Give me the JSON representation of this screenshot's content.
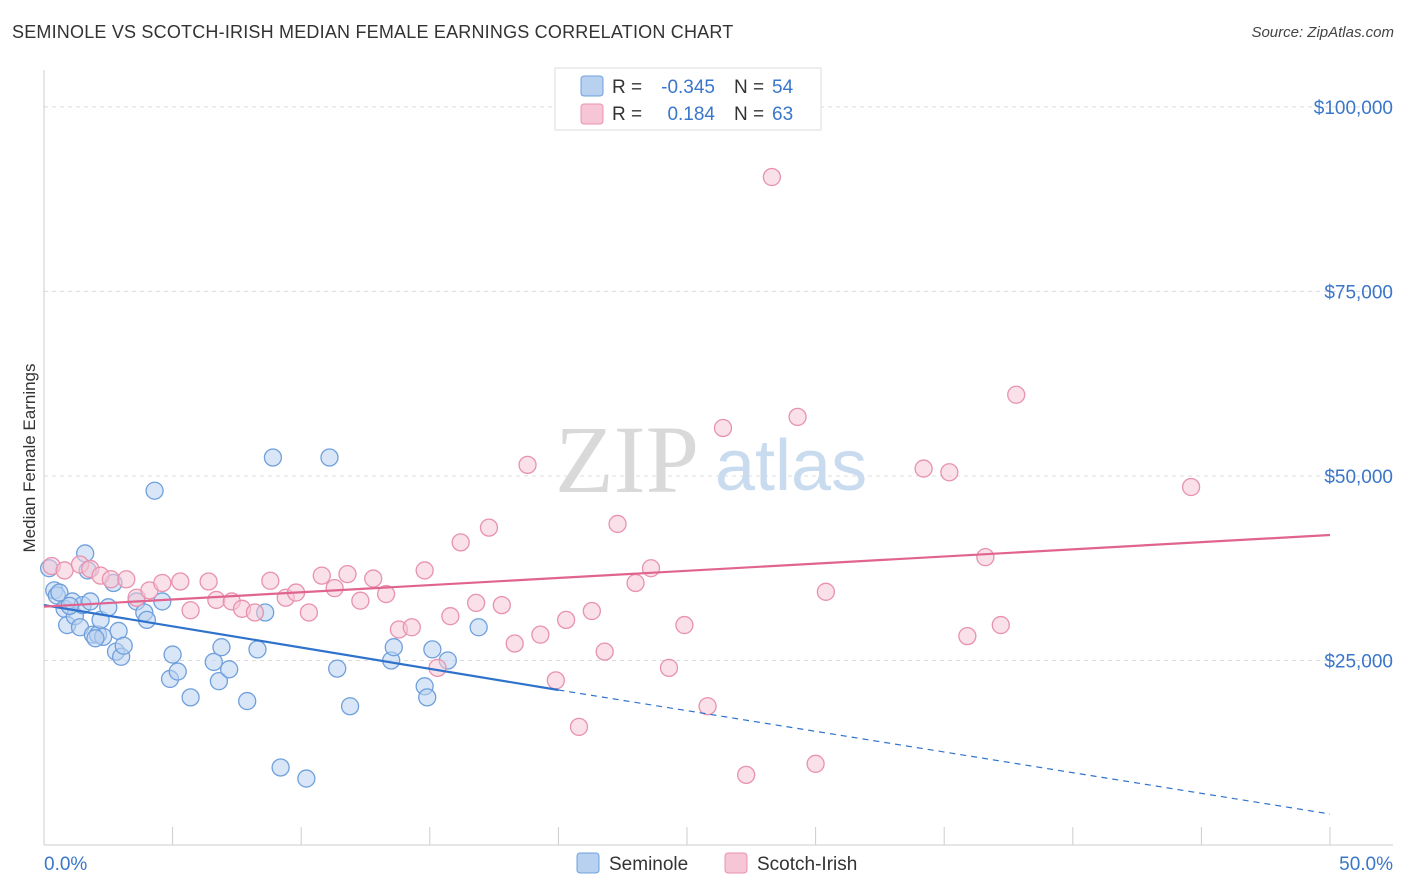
{
  "header": {
    "title": "SEMINOLE VS SCOTCH-IRISH MEDIAN FEMALE EARNINGS CORRELATION CHART",
    "source": "Source: ZipAtlas.com"
  },
  "watermark": {
    "zip": "ZIP",
    "atlas": "atlas"
  },
  "chart_data": {
    "type": "scatter",
    "title": "SEMINOLE VS SCOTCH-IRISH MEDIAN FEMALE EARNINGS CORRELATION CHART",
    "xlabel": "",
    "ylabel": "Median Female Earnings",
    "xlim": [
      0,
      50
    ],
    "ylim": [
      0,
      105000
    ],
    "x_tick_labels": {
      "min": "0.0%",
      "max": "50.0%"
    },
    "y_ticks": [
      {
        "value": 25000,
        "label": "$25,000"
      },
      {
        "value": 50000,
        "label": "$50,000"
      },
      {
        "value": 75000,
        "label": "$75,000"
      },
      {
        "value": 100000,
        "label": "$100,000"
      }
    ],
    "grid": true,
    "legend_position": "top-center",
    "stats": [
      {
        "series": "Seminole",
        "r_label": "R =",
        "r_value": "-0.345",
        "n_label": "N =",
        "n_value": "54"
      },
      {
        "series": "Scotch-Irish",
        "r_label": "R =",
        "r_value": "0.184",
        "n_label": "N =",
        "n_value": "63"
      }
    ],
    "series": [
      {
        "name": "Seminole",
        "color": "#6fa0dc",
        "fill": "#b9d1f1",
        "trend": {
          "x0": 0,
          "y0": 32500,
          "x1": 20,
          "y1": 21000,
          "dash_to_x": 50,
          "dash_to_y": 4200,
          "color": "#2f72cc"
        },
        "points": [
          [
            0.2,
            37500
          ],
          [
            0.4,
            34500
          ],
          [
            0.5,
            33800
          ],
          [
            0.6,
            34200
          ],
          [
            0.8,
            32000
          ],
          [
            0.9,
            29800
          ],
          [
            1.1,
            33000
          ],
          [
            1.2,
            31000
          ],
          [
            1.4,
            29500
          ],
          [
            1.5,
            32500
          ],
          [
            1.6,
            39500
          ],
          [
            1.7,
            37200
          ],
          [
            1.8,
            33000
          ],
          [
            1.9,
            28500
          ],
          [
            2.1,
            28500
          ],
          [
            2.2,
            30500
          ],
          [
            2.3,
            28200
          ],
          [
            2.5,
            32200
          ],
          [
            2.7,
            35500
          ],
          [
            2.8,
            26200
          ],
          [
            2.9,
            29000
          ],
          [
            3.0,
            25500
          ],
          [
            3.1,
            27000
          ],
          [
            3.6,
            33000
          ],
          [
            3.9,
            31500
          ],
          [
            4.0,
            30500
          ],
          [
            4.3,
            48000
          ],
          [
            4.6,
            33000
          ],
          [
            4.9,
            22500
          ],
          [
            5.0,
            25800
          ],
          [
            5.2,
            23500
          ],
          [
            5.7,
            20000
          ],
          [
            6.6,
            24800
          ],
          [
            6.9,
            26800
          ],
          [
            6.8,
            22200
          ],
          [
            7.2,
            23800
          ],
          [
            7.9,
            19500
          ],
          [
            8.3,
            26500
          ],
          [
            8.6,
            31500
          ],
          [
            8.9,
            52500
          ],
          [
            9.2,
            10500
          ],
          [
            10.2,
            9000
          ],
          [
            11.1,
            52500
          ],
          [
            11.4,
            23900
          ],
          [
            11.9,
            18800
          ],
          [
            13.5,
            25000
          ],
          [
            13.6,
            26800
          ],
          [
            14.8,
            21500
          ],
          [
            14.9,
            20000
          ],
          [
            15.1,
            26500
          ],
          [
            15.7,
            25000
          ],
          [
            16.9,
            29500
          ],
          [
            2.0,
            28000
          ],
          [
            1.0,
            32400
          ]
        ]
      },
      {
        "name": "Scotch-Irish",
        "color": "#e892ae",
        "fill": "#f6c6d6",
        "trend": {
          "x0": 0,
          "y0": 32300,
          "x1": 50,
          "y1": 42000,
          "color": "#e0648f"
        },
        "points": [
          [
            0.3,
            37800
          ],
          [
            0.8,
            37200
          ],
          [
            1.4,
            38000
          ],
          [
            1.8,
            37400
          ],
          [
            2.2,
            36500
          ],
          [
            2.6,
            36000
          ],
          [
            3.2,
            36000
          ],
          [
            3.6,
            33500
          ],
          [
            4.1,
            34500
          ],
          [
            4.6,
            35500
          ],
          [
            5.3,
            35700
          ],
          [
            5.7,
            31800
          ],
          [
            6.4,
            35700
          ],
          [
            6.7,
            33200
          ],
          [
            7.3,
            33000
          ],
          [
            7.7,
            32000
          ],
          [
            8.2,
            31500
          ],
          [
            8.8,
            35800
          ],
          [
            9.4,
            33500
          ],
          [
            9.8,
            34200
          ],
          [
            10.3,
            31500
          ],
          [
            10.8,
            36500
          ],
          [
            11.3,
            34800
          ],
          [
            11.8,
            36700
          ],
          [
            12.3,
            33100
          ],
          [
            12.8,
            36100
          ],
          [
            13.3,
            34000
          ],
          [
            13.8,
            29200
          ],
          [
            14.3,
            29500
          ],
          [
            14.8,
            37200
          ],
          [
            15.3,
            24000
          ],
          [
            15.8,
            31000
          ],
          [
            16.2,
            41000
          ],
          [
            16.8,
            32800
          ],
          [
            17.3,
            43000
          ],
          [
            17.8,
            32500
          ],
          [
            18.3,
            27300
          ],
          [
            18.8,
            51500
          ],
          [
            19.3,
            28500
          ],
          [
            19.9,
            22300
          ],
          [
            20.3,
            30500
          ],
          [
            20.8,
            16000
          ],
          [
            21.3,
            31700
          ],
          [
            21.8,
            26200
          ],
          [
            22.3,
            43500
          ],
          [
            23.0,
            35500
          ],
          [
            23.6,
            37500
          ],
          [
            24.3,
            24000
          ],
          [
            24.9,
            29800
          ],
          [
            25.8,
            18800
          ],
          [
            26.4,
            56500
          ],
          [
            27.3,
            9500
          ],
          [
            28.3,
            90500
          ],
          [
            29.3,
            58000
          ],
          [
            30.0,
            11000
          ],
          [
            30.4,
            34300
          ],
          [
            34.2,
            51000
          ],
          [
            35.2,
            50500
          ],
          [
            35.9,
            28300
          ],
          [
            36.6,
            39000
          ],
          [
            37.2,
            29800
          ],
          [
            37.8,
            61000
          ],
          [
            44.6,
            48500
          ]
        ]
      }
    ]
  },
  "legend": {
    "items": [
      "Seminole",
      "Scotch-Irish"
    ]
  }
}
